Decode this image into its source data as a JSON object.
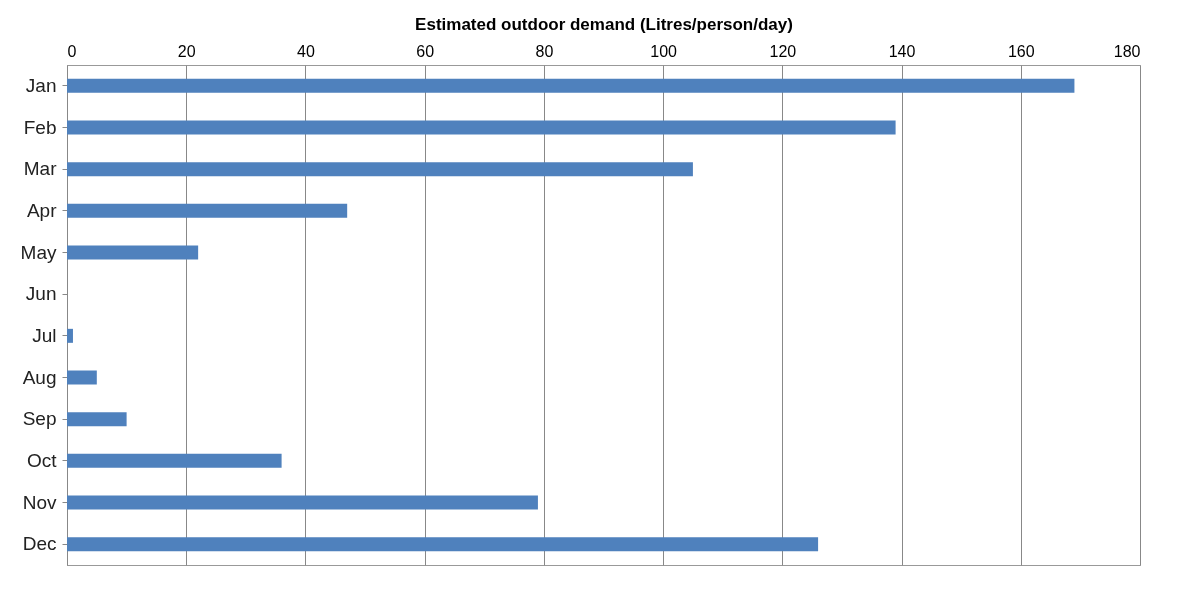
{
  "chart_data": {
    "type": "bar",
    "orientation": "horizontal",
    "xlabel": "Estimated outdoor demand (Litres/person/day)",
    "categories": [
      "Jan",
      "Feb",
      "Mar",
      "Apr",
      "May",
      "Jun",
      "Jul",
      "Aug",
      "Sep",
      "Oct",
      "Nov",
      "Dec"
    ],
    "values": [
      169,
      139,
      105,
      47,
      22,
      0,
      1,
      5,
      10,
      36,
      79,
      126
    ],
    "color": "#4f81bd",
    "xlim": [
      0,
      180
    ],
    "xticks": [
      0,
      20,
      40,
      60,
      80,
      100,
      120,
      140,
      160,
      180
    ],
    "grid": "x"
  }
}
